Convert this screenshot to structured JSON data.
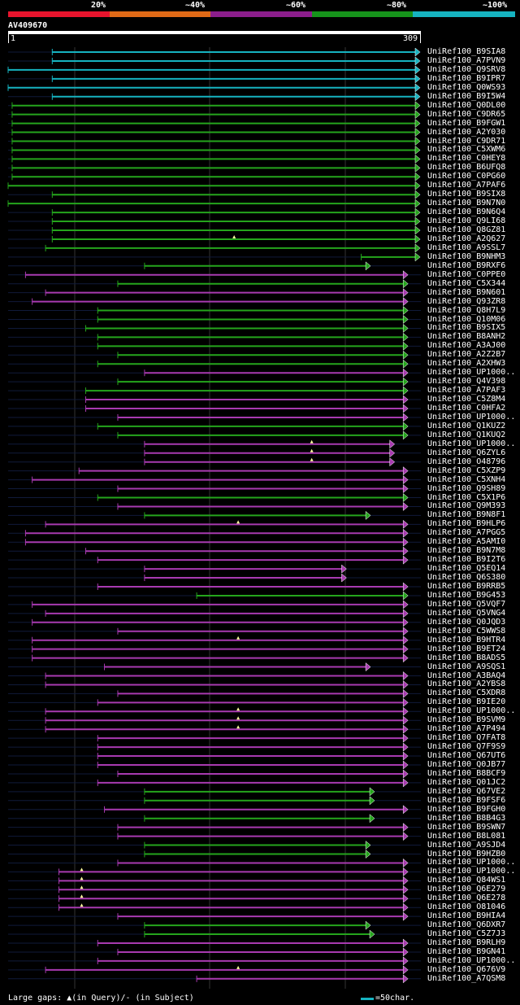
{
  "legend": {
    "labels": [
      "20%",
      "~40%",
      "~60%",
      "~80%",
      "~100%"
    ],
    "colors": [
      "#e8142d",
      "#e06a17",
      "#8c1e8c",
      "#16931b",
      "#16b3c0"
    ]
  },
  "query": {
    "name": "AV409670",
    "start": "1",
    "end": "309",
    "length": 309
  },
  "colors": {
    "cyan": "#16b3c0",
    "green": "#25a51c",
    "magenta": "#a83ab0",
    "gap": "#ffffa0",
    "guide": "#333333",
    "background": "#000000"
  },
  "hits": [
    {
      "name": "UniRef100_B9SIA8",
      "color": "cyan",
      "start": 34,
      "end": 309
    },
    {
      "name": "UniRef100_A7PVN9",
      "color": "cyan",
      "start": 34,
      "end": 309
    },
    {
      "name": "UniRef100_Q9SRV8",
      "color": "cyan",
      "start": 1,
      "end": 309
    },
    {
      "name": "UniRef100_B9IPR7",
      "color": "cyan",
      "start": 34,
      "end": 309
    },
    {
      "name": "UniRef100_Q0WS93",
      "color": "cyan",
      "start": 1,
      "end": 309
    },
    {
      "name": "UniRef100_B9I5W4",
      "color": "cyan",
      "start": 34,
      "end": 309
    },
    {
      "name": "UniRef100_Q0DL00",
      "color": "green",
      "start": 4,
      "end": 309
    },
    {
      "name": "UniRef100_C9DR65",
      "color": "green",
      "start": 4,
      "end": 309
    },
    {
      "name": "UniRef100_B9FGW1",
      "color": "green",
      "start": 4,
      "end": 309
    },
    {
      "name": "UniRef100_A2Y030",
      "color": "green",
      "start": 4,
      "end": 309
    },
    {
      "name": "UniRef100_C9DR71",
      "color": "green",
      "start": 4,
      "end": 309
    },
    {
      "name": "UniRef100_C5XWM6",
      "color": "green",
      "start": 4,
      "end": 309
    },
    {
      "name": "UniRef100_C0HEY8",
      "color": "green",
      "start": 4,
      "end": 309
    },
    {
      "name": "UniRef100_B6UFQ8",
      "color": "green",
      "start": 4,
      "end": 309
    },
    {
      "name": "UniRef100_C0PG60",
      "color": "green",
      "start": 4,
      "end": 309
    },
    {
      "name": "UniRef100_A7PAF6",
      "color": "green",
      "start": 1,
      "end": 309
    },
    {
      "name": "UniRef100_B9SIX8",
      "color": "green",
      "start": 34,
      "end": 309
    },
    {
      "name": "UniRef100_B9N7N0",
      "color": "green",
      "start": 1,
      "end": 309
    },
    {
      "name": "UniRef100_B9N6Q4",
      "color": "green",
      "start": 34,
      "end": 309
    },
    {
      "name": "UniRef100_Q9LI68",
      "color": "green",
      "start": 34,
      "end": 309
    },
    {
      "name": "UniRef100_Q8GZ81",
      "color": "green",
      "start": 34,
      "end": 309
    },
    {
      "name": "UniRef100_A2Q627",
      "color": "green",
      "start": 34,
      "end": 309,
      "gap": 170
    },
    {
      "name": "UniRef100_A9SSL7",
      "color": "green",
      "start": 29,
      "end": 309
    },
    {
      "name": "UniRef100_B9NHM3",
      "color": "green",
      "start": 265,
      "end": 309
    },
    {
      "name": "UniRef100_B9RXF6",
      "color": "green",
      "start": 103,
      "end": 272
    },
    {
      "name": "UniRef100_C0PPE0",
      "color": "magenta",
      "start": 14,
      "end": 300
    },
    {
      "name": "UniRef100_C5X344",
      "color": "green",
      "start": 83,
      "end": 300
    },
    {
      "name": "UniRef100_B9N601",
      "color": "magenta",
      "start": 29,
      "end": 300
    },
    {
      "name": "UniRef100_Q93ZR8",
      "color": "magenta",
      "start": 19,
      "end": 300
    },
    {
      "name": "UniRef100_Q8H7L9",
      "color": "green",
      "start": 68,
      "end": 300
    },
    {
      "name": "UniRef100_Q10M06",
      "color": "green",
      "start": 68,
      "end": 300
    },
    {
      "name": "UniRef100_B9SIX5",
      "color": "green",
      "start": 59,
      "end": 300
    },
    {
      "name": "UniRef100_B8ANH2",
      "color": "green",
      "start": 68,
      "end": 300
    },
    {
      "name": "UniRef100_A3AJ00",
      "color": "green",
      "start": 68,
      "end": 300
    },
    {
      "name": "UniRef100_A2Z2B7",
      "color": "green",
      "start": 83,
      "end": 300
    },
    {
      "name": "UniRef100_A2XHW3",
      "color": "green",
      "start": 68,
      "end": 300
    },
    {
      "name": "UniRef100_UP1000..",
      "color": "magenta",
      "start": 103,
      "end": 300
    },
    {
      "name": "UniRef100_Q4V398",
      "color": "green",
      "start": 83,
      "end": 300
    },
    {
      "name": "UniRef100_A7PAF3",
      "color": "green",
      "start": 59,
      "end": 300
    },
    {
      "name": "UniRef100_C5Z8M4",
      "color": "magenta",
      "start": 59,
      "end": 300
    },
    {
      "name": "UniRef100_C0HFA2",
      "color": "magenta",
      "start": 59,
      "end": 300
    },
    {
      "name": "UniRef100_UP1000..",
      "color": "magenta",
      "start": 83,
      "end": 300
    },
    {
      "name": "UniRef100_Q1KUZ2",
      "color": "green",
      "start": 68,
      "end": 300
    },
    {
      "name": "UniRef100_Q1KUQ2",
      "color": "green",
      "start": 83,
      "end": 300
    },
    {
      "name": "UniRef100_UP1000..",
      "color": "magenta",
      "start": 103,
      "end": 290,
      "gap": 228
    },
    {
      "name": "UniRef100_Q6ZYL6",
      "color": "magenta",
      "start": 103,
      "end": 290,
      "gap": 228
    },
    {
      "name": "UniRef100_O48796",
      "color": "magenta",
      "start": 103,
      "end": 290,
      "gap": 228
    },
    {
      "name": "UniRef100_C5XZP9",
      "color": "magenta",
      "start": 54,
      "end": 300
    },
    {
      "name": "UniRef100_C5XNH4",
      "color": "magenta",
      "start": 19,
      "end": 300
    },
    {
      "name": "UniRef100_Q9SH89",
      "color": "magenta",
      "start": 83,
      "end": 300
    },
    {
      "name": "UniRef100_C5X1P6",
      "color": "green",
      "start": 68,
      "end": 300
    },
    {
      "name": "UniRef100_Q9M393",
      "color": "magenta",
      "start": 83,
      "end": 300
    },
    {
      "name": "UniRef100_B9N8F1",
      "color": "green",
      "start": 103,
      "end": 272
    },
    {
      "name": "UniRef100_B9HLP6",
      "color": "magenta",
      "start": 29,
      "end": 300,
      "gap": 173
    },
    {
      "name": "UniRef100_A7PGG5",
      "color": "magenta",
      "start": 14,
      "end": 300
    },
    {
      "name": "UniRef100_A5AMI0",
      "color": "magenta",
      "start": 14,
      "end": 300
    },
    {
      "name": "UniRef100_B9N7M8",
      "color": "magenta",
      "start": 59,
      "end": 300
    },
    {
      "name": "UniRef100_B9I2T6",
      "color": "magenta",
      "start": 68,
      "end": 300
    },
    {
      "name": "UniRef100_Q5EQ14",
      "color": "magenta",
      "start": 103,
      "end": 254
    },
    {
      "name": "UniRef100_Q6S380",
      "color": "magenta",
      "start": 103,
      "end": 254
    },
    {
      "name": "UniRef100_B9RRB5",
      "color": "magenta",
      "start": 68,
      "end": 300
    },
    {
      "name": "UniRef100_B9G453",
      "color": "green",
      "start": 142,
      "end": 300
    },
    {
      "name": "UniRef100_Q5VQF7",
      "color": "magenta",
      "start": 19,
      "end": 300
    },
    {
      "name": "UniRef100_Q5VNG4",
      "color": "magenta",
      "start": 29,
      "end": 300
    },
    {
      "name": "UniRef100_Q0JQD3",
      "color": "magenta",
      "start": 19,
      "end": 300
    },
    {
      "name": "UniRef100_C5WWS8",
      "color": "magenta",
      "start": 83,
      "end": 300
    },
    {
      "name": "UniRef100_B9HTR4",
      "color": "magenta",
      "start": 19,
      "end": 300,
      "gap": 173
    },
    {
      "name": "UniRef100_B9ET24",
      "color": "magenta",
      "start": 19,
      "end": 300
    },
    {
      "name": "UniRef100_B8ADS5",
      "color": "magenta",
      "start": 19,
      "end": 300
    },
    {
      "name": "UniRef100_A9SQS1",
      "color": "magenta",
      "start": 73,
      "end": 272
    },
    {
      "name": "UniRef100_A3BAQ4",
      "color": "magenta",
      "start": 29,
      "end": 300
    },
    {
      "name": "UniRef100_A2YBS8",
      "color": "magenta",
      "start": 29,
      "end": 300
    },
    {
      "name": "UniRef100_C5XDR8",
      "color": "magenta",
      "start": 83,
      "end": 300
    },
    {
      "name": "UniRef100_B9IE20",
      "color": "magenta",
      "start": 68,
      "end": 300
    },
    {
      "name": "UniRef100_UP1000..",
      "color": "magenta",
      "start": 29,
      "end": 300,
      "gap": 173
    },
    {
      "name": "UniRef100_B9SVM9",
      "color": "magenta",
      "start": 29,
      "end": 300,
      "gap": 173
    },
    {
      "name": "UniRef100_A7P494",
      "color": "magenta",
      "start": 29,
      "end": 300,
      "gap": 173
    },
    {
      "name": "UniRef100_Q7FAT8",
      "color": "magenta",
      "start": 68,
      "end": 300
    },
    {
      "name": "UniRef100_Q7F9S9",
      "color": "magenta",
      "start": 68,
      "end": 300
    },
    {
      "name": "UniRef100_Q67UT6",
      "color": "magenta",
      "start": 68,
      "end": 300
    },
    {
      "name": "UniRef100_Q0JB77",
      "color": "magenta",
      "start": 68,
      "end": 300
    },
    {
      "name": "UniRef100_B8BCF9",
      "color": "magenta",
      "start": 83,
      "end": 300
    },
    {
      "name": "UniRef100_Q01JC2",
      "color": "magenta",
      "start": 68,
      "end": 300
    },
    {
      "name": "UniRef100_Q67VE2",
      "color": "green",
      "start": 103,
      "end": 275
    },
    {
      "name": "UniRef100_B9FSF6",
      "color": "green",
      "start": 103,
      "end": 275
    },
    {
      "name": "UniRef100_B9FGH0",
      "color": "magenta",
      "start": 73,
      "end": 300
    },
    {
      "name": "UniRef100_B8B4G3",
      "color": "green",
      "start": 103,
      "end": 275
    },
    {
      "name": "UniRef100_B9SWN7",
      "color": "magenta",
      "start": 83,
      "end": 300
    },
    {
      "name": "UniRef100_B8L081",
      "color": "magenta",
      "start": 83,
      "end": 300
    },
    {
      "name": "UniRef100_A9SJD4",
      "color": "green",
      "start": 103,
      "end": 272
    },
    {
      "name": "UniRef100_B9HZB0",
      "color": "green",
      "start": 103,
      "end": 272
    },
    {
      "name": "UniRef100_UP1000..",
      "color": "magenta",
      "start": 83,
      "end": 300
    },
    {
      "name": "UniRef100_UP1000..",
      "color": "magenta",
      "start": 39,
      "end": 300,
      "gap": 56
    },
    {
      "name": "UniRef100_Q84WS1",
      "color": "magenta",
      "start": 39,
      "end": 300,
      "gap": 56
    },
    {
      "name": "UniRef100_Q6E279",
      "color": "magenta",
      "start": 39,
      "end": 300,
      "gap": 56
    },
    {
      "name": "UniRef100_Q6E278",
      "color": "magenta",
      "start": 39,
      "end": 300,
      "gap": 56
    },
    {
      "name": "UniRef100_O81046",
      "color": "magenta",
      "start": 39,
      "end": 300,
      "gap": 56
    },
    {
      "name": "UniRef100_B9HIA4",
      "color": "magenta",
      "start": 83,
      "end": 300
    },
    {
      "name": "UniRef100_Q6DXR7",
      "color": "green",
      "start": 103,
      "end": 272
    },
    {
      "name": "UniRef100_C5Z7J3",
      "color": "green",
      "start": 103,
      "end": 275
    },
    {
      "name": "UniRef100_B9RLH9",
      "color": "magenta",
      "start": 68,
      "end": 300
    },
    {
      "name": "UniRef100_B9GN41",
      "color": "magenta",
      "start": 83,
      "end": 300
    },
    {
      "name": "UniRef100_UP1000..",
      "color": "magenta",
      "start": 68,
      "end": 300
    },
    {
      "name": "UniRef100_Q676V9",
      "color": "magenta",
      "start": 29,
      "end": 300,
      "gap": 173
    },
    {
      "name": "UniRef100_A7QSM8",
      "color": "magenta",
      "start": 142,
      "end": 300
    }
  ],
  "footer": {
    "gaps_text": "Large gaps: ▲(in Query)/- (in Subject)",
    "scale_text": "=50char."
  }
}
